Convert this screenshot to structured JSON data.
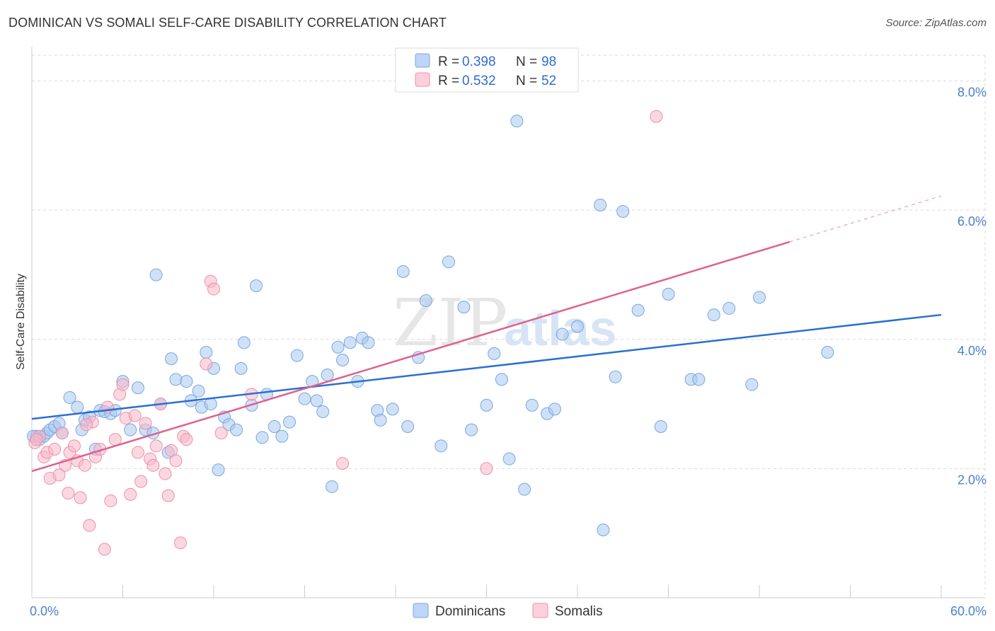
{
  "title": "DOMINICAN VS SOMALI SELF-CARE DISABILITY CORRELATION CHART",
  "source": "Source: ZipAtlas.com",
  "watermark": {
    "zip": "ZIP",
    "atlas": "atlas"
  },
  "chart_data": {
    "type": "scatter",
    "title": "DOMINICAN VS SOMALI SELF-CARE DISABILITY CORRELATION CHART",
    "xlabel": "",
    "ylabel": "Self-Care Disability",
    "xlim": [
      0,
      60
    ],
    "ylim": [
      0,
      8.4
    ],
    "x_tick_labels": [
      {
        "value": 0,
        "label": "0.0%"
      },
      {
        "value": 60,
        "label": "60.0%"
      }
    ],
    "y_tick_labels": [
      {
        "value": 2,
        "label": "2.0%"
      },
      {
        "value": 4,
        "label": "4.0%"
      },
      {
        "value": 6,
        "label": "6.0%"
      },
      {
        "value": 8,
        "label": "8.0%"
      }
    ],
    "grid": true,
    "legend": {
      "entries": [
        {
          "r_label": "R = ",
          "r_value": "0.398",
          "n_label": "N = ",
          "n_value": "98"
        },
        {
          "r_label": "R = ",
          "r_value": "0.532",
          "n_label": "N = ",
          "n_value": "52"
        }
      ]
    },
    "series": [
      {
        "name": "Dominicans",
        "color": "#a8c8f0",
        "stroke": "#7aa6e0",
        "line_color": "#2a6fd4",
        "trend": {
          "x0": 0,
          "y0": 2.77,
          "x1": 60,
          "y1": 4.38,
          "solid_until": 60
        },
        "points": [
          [
            0.3,
            2.5
          ],
          [
            0.5,
            2.45
          ],
          [
            0.8,
            2.5
          ],
          [
            1.0,
            2.55
          ],
          [
            1.2,
            2.6
          ],
          [
            1.5,
            2.65
          ],
          [
            1.8,
            2.7
          ],
          [
            2.0,
            2.55
          ],
          [
            2.5,
            3.1
          ],
          [
            3.0,
            2.95
          ],
          [
            3.3,
            2.6
          ],
          [
            3.5,
            2.75
          ],
          [
            3.8,
            2.8
          ],
          [
            4.2,
            2.3
          ],
          [
            4.5,
            2.9
          ],
          [
            4.8,
            2.88
          ],
          [
            5.2,
            2.85
          ],
          [
            5.5,
            2.9
          ],
          [
            6.0,
            3.35
          ],
          [
            6.5,
            2.6
          ],
          [
            7.0,
            3.25
          ],
          [
            7.5,
            2.6
          ],
          [
            8.0,
            2.55
          ],
          [
            8.2,
            5.0
          ],
          [
            8.5,
            3.0
          ],
          [
            9.0,
            2.25
          ],
          [
            9.2,
            3.7
          ],
          [
            9.5,
            3.38
          ],
          [
            10.2,
            3.35
          ],
          [
            10.5,
            3.05
          ],
          [
            11.0,
            3.2
          ],
          [
            11.2,
            2.95
          ],
          [
            11.5,
            3.8
          ],
          [
            11.8,
            3.0
          ],
          [
            12.0,
            3.55
          ],
          [
            12.3,
            1.98
          ],
          [
            12.7,
            2.8
          ],
          [
            13.0,
            2.68
          ],
          [
            13.5,
            2.6
          ],
          [
            13.8,
            3.55
          ],
          [
            14.0,
            3.95
          ],
          [
            14.5,
            2.98
          ],
          [
            14.8,
            4.83
          ],
          [
            15.2,
            2.48
          ],
          [
            15.5,
            3.15
          ],
          [
            16.0,
            2.65
          ],
          [
            16.5,
            2.5
          ],
          [
            17.0,
            2.72
          ],
          [
            17.5,
            3.75
          ],
          [
            18.0,
            3.08
          ],
          [
            18.5,
            3.35
          ],
          [
            18.8,
            3.05
          ],
          [
            19.2,
            2.88
          ],
          [
            19.5,
            3.45
          ],
          [
            19.8,
            1.72
          ],
          [
            20.2,
            3.88
          ],
          [
            20.5,
            3.68
          ],
          [
            21.0,
            3.95
          ],
          [
            21.5,
            3.35
          ],
          [
            21.8,
            4.02
          ],
          [
            22.2,
            3.95
          ],
          [
            22.8,
            2.9
          ],
          [
            23.0,
            2.75
          ],
          [
            23.8,
            2.92
          ],
          [
            24.5,
            5.05
          ],
          [
            24.8,
            2.65
          ],
          [
            25.5,
            3.72
          ],
          [
            26.0,
            4.6
          ],
          [
            27.0,
            2.35
          ],
          [
            27.5,
            5.2
          ],
          [
            28.5,
            4.5
          ],
          [
            29.0,
            2.6
          ],
          [
            30.0,
            2.98
          ],
          [
            30.5,
            3.78
          ],
          [
            31.0,
            3.38
          ],
          [
            31.5,
            2.15
          ],
          [
            32.0,
            7.38
          ],
          [
            32.5,
            1.68
          ],
          [
            33.0,
            2.98
          ],
          [
            34.0,
            2.85
          ],
          [
            34.5,
            2.92
          ],
          [
            35.0,
            4.08
          ],
          [
            36.0,
            4.2
          ],
          [
            37.5,
            6.08
          ],
          [
            37.7,
            1.05
          ],
          [
            38.5,
            3.42
          ],
          [
            39.0,
            5.98
          ],
          [
            40.0,
            4.45
          ],
          [
            41.5,
            2.65
          ],
          [
            42.0,
            4.7
          ],
          [
            43.5,
            3.38
          ],
          [
            44.0,
            3.38
          ],
          [
            45.0,
            4.38
          ],
          [
            46.0,
            4.48
          ],
          [
            47.5,
            3.3
          ],
          [
            48.0,
            4.65
          ],
          [
            52.5,
            3.8
          ],
          [
            0.1,
            2.5
          ]
        ]
      },
      {
        "name": "Somalis",
        "color": "#f7b8c8",
        "stroke": "#ee8fa8",
        "line_color": "#e0608c",
        "trend": {
          "x0": 0,
          "y0": 1.96,
          "x1": 60,
          "y1": 6.22,
          "solid_until": 50
        },
        "points": [
          [
            0.2,
            2.4
          ],
          [
            0.5,
            2.5
          ],
          [
            0.8,
            2.18
          ],
          [
            1.0,
            2.25
          ],
          [
            1.2,
            1.85
          ],
          [
            1.5,
            2.3
          ],
          [
            1.8,
            1.9
          ],
          [
            2.0,
            2.55
          ],
          [
            2.2,
            2.05
          ],
          [
            2.5,
            2.25
          ],
          [
            2.8,
            2.35
          ],
          [
            3.0,
            2.12
          ],
          [
            3.2,
            1.55
          ],
          [
            3.5,
            2.05
          ],
          [
            3.8,
            1.12
          ],
          [
            4.0,
            2.72
          ],
          [
            4.2,
            2.18
          ],
          [
            4.5,
            2.3
          ],
          [
            4.8,
            0.75
          ],
          [
            5.0,
            2.95
          ],
          [
            5.2,
            1.5
          ],
          [
            5.5,
            2.45
          ],
          [
            5.8,
            3.15
          ],
          [
            6.0,
            3.3
          ],
          [
            6.2,
            2.78
          ],
          [
            6.5,
            1.6
          ],
          [
            6.8,
            2.82
          ],
          [
            7.0,
            2.25
          ],
          [
            7.2,
            1.8
          ],
          [
            7.5,
            2.7
          ],
          [
            7.8,
            2.15
          ],
          [
            8.0,
            2.05
          ],
          [
            8.2,
            2.35
          ],
          [
            8.5,
            3.0
          ],
          [
            8.8,
            1.92
          ],
          [
            9.0,
            1.58
          ],
          [
            9.2,
            2.28
          ],
          [
            9.5,
            2.12
          ],
          [
            9.8,
            0.85
          ],
          [
            10.0,
            2.5
          ],
          [
            10.2,
            2.45
          ],
          [
            11.5,
            3.62
          ],
          [
            11.8,
            4.9
          ],
          [
            12.0,
            4.78
          ],
          [
            12.5,
            2.55
          ],
          [
            14.5,
            3.15
          ],
          [
            20.5,
            2.08
          ],
          [
            30.0,
            2.0
          ],
          [
            41.2,
            7.45
          ],
          [
            0.3,
            2.45
          ],
          [
            2.4,
            1.62
          ],
          [
            3.6,
            2.68
          ]
        ]
      }
    ]
  }
}
